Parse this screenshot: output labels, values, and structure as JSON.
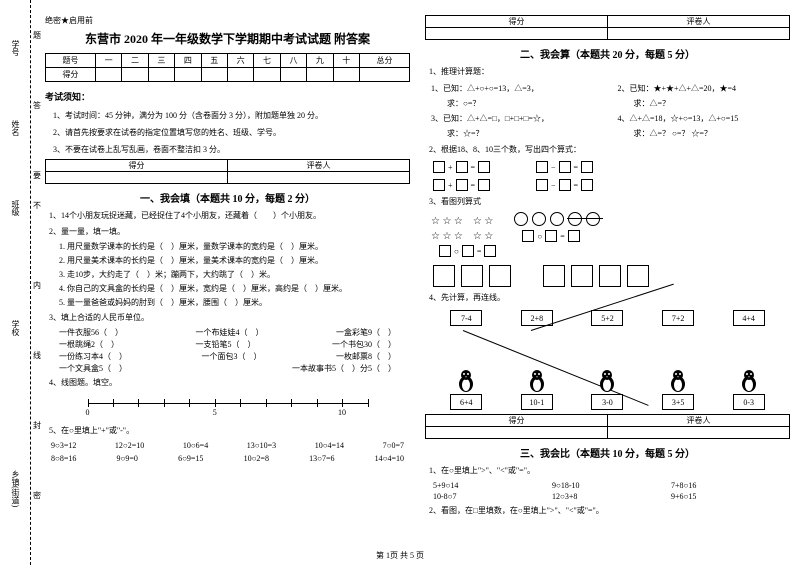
{
  "margin": {
    "labels": [
      "学号",
      "姓名",
      "班级",
      "学校",
      "乡镇(街道)"
    ],
    "chars": [
      "题",
      "答",
      "要",
      "不",
      "内",
      "线",
      "封",
      "密"
    ]
  },
  "header_label": "绝密★启用前",
  "title": "东营市 2020 年一年级数学下学期期中考试试题 附答案",
  "qnum_headers": [
    "题号",
    "一",
    "二",
    "三",
    "四",
    "五",
    "六",
    "七",
    "八",
    "九",
    "十",
    "总分"
  ],
  "qnum_row2": "得分",
  "notice": "考试须知：",
  "notes": [
    "1、考试时间：45 分钟，满分为 100 分（含卷面分 3 分），附加题单独 20 分。",
    "2、请首先按要求在试卷的指定位置填写您的姓名、班级、学号。",
    "3、不要在试卷上乱写乱画，卷面不整洁扣 3 分。"
  ],
  "score_headers": [
    "得分",
    "评卷人"
  ],
  "section1_title": "一、我会填（本题共 10 分，每题 2 分）",
  "s1": {
    "q1": "1、14个小朋友玩捉迷藏，已经捉住了4个小朋友，还藏着（　　）个小朋友。",
    "q2": "2、量一量，填一填。",
    "q2_items": [
      "1. 用尺量数学课本的长约是（　）厘米，量数学课本的宽约是（　）厘米。",
      "2. 用尺量美术课本的长约是（　）厘米，量美术课本的宽约是（　）厘米。",
      "3. 走10步，大约走了（　）米；蹦两下，大约跳了（　）米。",
      "4. 你自己的文具盒的长约是（　）厘米，宽约是（　）厘米，高约是（　）厘米。",
      "5. 量一量爸爸或妈妈的肘到（　）厘米，腰围（　）厘米。"
    ],
    "q3": "3、填上合适的人民币单位。",
    "q3_items": [
      [
        "一件衣服56（　）",
        "一个布娃娃4（　）",
        "一盒彩笔9（　）"
      ],
      [
        "一根跳绳2（　）",
        "一支铅笔5（　）",
        "一个书包30（　）"
      ],
      [
        "一份练习本4（　）",
        "一个面包3（　）",
        "一枚邮票8（　）"
      ],
      [
        "一个文具盒5（　）",
        "一本故事书5（　）分5（　）"
      ]
    ],
    "q4": "4、线图题。填空。",
    "numline": {
      "ticks": 11,
      "labels": {
        "0": "0",
        "5": "5",
        "10": "10"
      }
    },
    "q5": "5、在○里填上\"+\"或\"-\"。",
    "q5_rows": [
      [
        "9○3=12",
        "12○2=10",
        "10○6=4",
        "13○10=3",
        "10○4=14",
        "7○0=7"
      ],
      [
        "8○8=16",
        "9○9=0",
        "6○9=15",
        "10○2=8",
        "13○7=6",
        "14○4=10"
      ]
    ]
  },
  "section2_title": "二、我会算（本题共 20 分，每题 5 分）",
  "s2": {
    "q1": "1、推理计算题：",
    "q1_items": [
      {
        "l": "1、已知：△+○+○=13，△=3，",
        "r": "2、已知：★+★+△+△=20，★=4"
      },
      {
        "l": "　　求：○=？",
        "r": "　　求：△=？"
      },
      {
        "l": "3、已知：△+△=□，□+□+□=☆，",
        "r": "4、△+△=18，☆+○=13，△+○=15"
      },
      {
        "l": "　　求：☆=？",
        "r": "　　求：△=？ ○=？ ☆=？"
      }
    ],
    "q2": "2、根据18、8、10三个数，写出四个算式：",
    "q3": "3、看图列算式",
    "q3_stars": "☆ ☆ ☆　　☆ ☆",
    "q4": "4、先计算，再连线。",
    "top_cards": [
      "7-4",
      "2+8",
      "5+2",
      "7+2",
      "4+4"
    ],
    "bot_cards": [
      "6+4",
      "10-1",
      "3-0",
      "3+5",
      "0-3"
    ]
  },
  "section3_title": "三、我会比（本题共 10 分，每题 5 分）",
  "s3": {
    "q1": "1、在○里填上\">\"、\"<\"或\"=\"。",
    "q1_items": [
      [
        "5+9○14",
        "9○18-10",
        "7+8○16"
      ],
      [
        "10-8○7",
        "12○3+8",
        "9+6○15"
      ]
    ],
    "q2": "2、看图，在□里填数，在○里填上\">\"、\"<\"或\"=\"。"
  },
  "footer": "第 1页 共 5 页"
}
